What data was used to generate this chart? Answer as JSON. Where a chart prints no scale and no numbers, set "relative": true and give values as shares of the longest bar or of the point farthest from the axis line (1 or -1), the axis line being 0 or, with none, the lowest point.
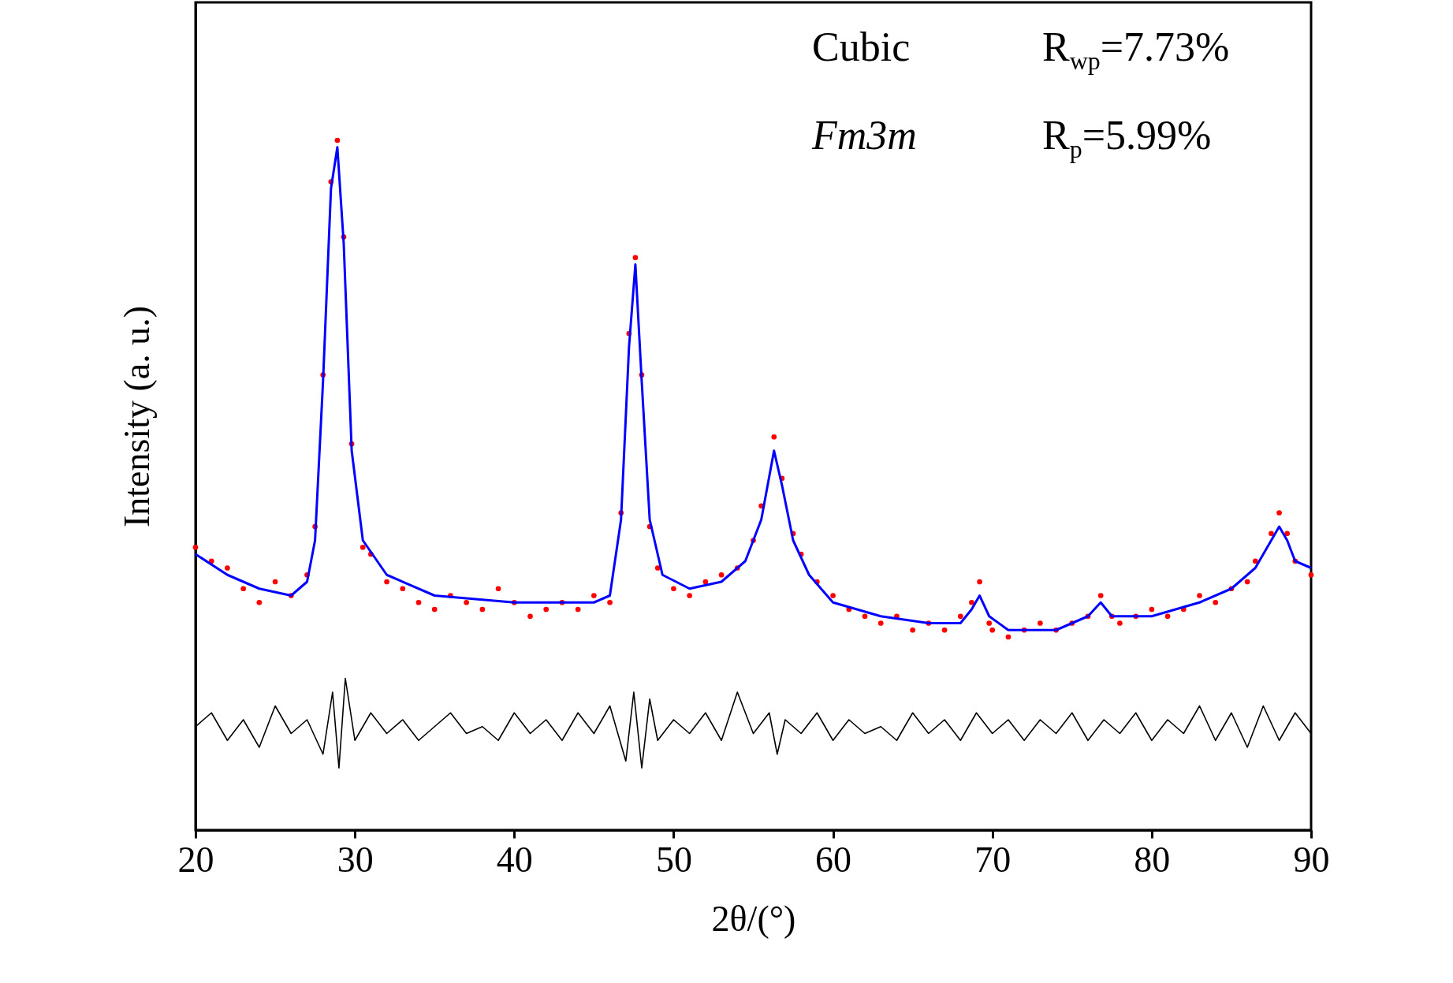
{
  "chart_data": {
    "type": "line",
    "relative": true,
    "xlabel": "2θ/(°)",
    "ylabel": "Intensity (a. u.)",
    "xlim": [
      20,
      90
    ],
    "xticks": [
      20,
      30,
      40,
      50,
      60,
      70,
      80,
      90
    ],
    "annotations": [
      "Cubic",
      "R$_{wp}$=7.73%",
      "Fm3m",
      "R$_{p}$=5.99%"
    ],
    "series": [
      {
        "type": "scatter",
        "marker": "circle",
        "color": "#ff0000",
        "x": [
          20,
          21,
          22,
          23,
          24,
          25,
          26,
          27,
          27.5,
          28,
          28.5,
          28.9,
          29.3,
          29.8,
          30.5,
          31,
          32,
          33,
          34,
          35,
          36,
          37,
          38,
          39,
          40,
          41,
          42,
          43,
          44,
          45,
          46,
          46.7,
          47.2,
          47.6,
          48,
          48.5,
          49,
          50,
          51,
          52,
          53,
          54,
          55,
          55.5,
          56.3,
          56.8,
          57.5,
          58,
          59,
          60,
          61,
          62,
          63,
          64,
          65,
          66,
          67,
          68,
          68.7,
          69.2,
          69.8,
          70,
          71,
          72,
          73,
          74,
          75,
          76,
          76.8,
          77.5,
          78,
          79,
          80,
          81,
          82,
          83,
          84,
          85,
          86,
          86.5,
          87.5,
          88,
          88.5,
          89,
          90
        ],
        "values": [
          0.41,
          0.39,
          0.38,
          0.35,
          0.33,
          0.36,
          0.34,
          0.37,
          0.44,
          0.66,
          0.94,
          1,
          0.86,
          0.56,
          0.41,
          0.4,
          0.36,
          0.35,
          0.33,
          0.32,
          0.34,
          0.33,
          0.32,
          0.35,
          0.33,
          0.31,
          0.32,
          0.33,
          0.32,
          0.34,
          0.33,
          0.46,
          0.72,
          0.83,
          0.66,
          0.44,
          0.38,
          0.35,
          0.34,
          0.36,
          0.37,
          0.38,
          0.42,
          0.47,
          0.57,
          0.51,
          0.43,
          0.4,
          0.36,
          0.34,
          0.32,
          0.31,
          0.3,
          0.31,
          0.29,
          0.3,
          0.29,
          0.31,
          0.33,
          0.36,
          0.3,
          0.29,
          0.28,
          0.29,
          0.3,
          0.29,
          0.3,
          0.31,
          0.34,
          0.31,
          0.3,
          0.31,
          0.32,
          0.31,
          0.32,
          0.34,
          0.33,
          0.35,
          0.36,
          0.39,
          0.43,
          0.46,
          0.43,
          0.39,
          0.37
        ]
      },
      {
        "marker": "none",
        "color": "#0000ff",
        "x": [
          20,
          22,
          24,
          26,
          27,
          27.5,
          28,
          28.5,
          28.9,
          29.3,
          29.8,
          30.5,
          32,
          35,
          40,
          45,
          46,
          46.7,
          47.2,
          47.6,
          48,
          48.5,
          49.3,
          51,
          53,
          54.5,
          55.5,
          56.3,
          56.8,
          57.5,
          58.5,
          60,
          63,
          66,
          68,
          68.7,
          69.2,
          69.8,
          71,
          74,
          76,
          76.8,
          77.5,
          80,
          83,
          85,
          86.5,
          87.5,
          88,
          88.5,
          89,
          90
        ],
        "values": [
          0.4,
          0.37,
          0.35,
          0.34,
          0.36,
          0.42,
          0.65,
          0.93,
          0.99,
          0.85,
          0.55,
          0.42,
          0.37,
          0.34,
          0.33,
          0.33,
          0.34,
          0.45,
          0.7,
          0.82,
          0.65,
          0.45,
          0.37,
          0.35,
          0.36,
          0.39,
          0.45,
          0.55,
          0.5,
          0.42,
          0.37,
          0.33,
          0.31,
          0.3,
          0.3,
          0.32,
          0.34,
          0.31,
          0.29,
          0.29,
          0.31,
          0.33,
          0.31,
          0.31,
          0.33,
          0.35,
          0.38,
          0.42,
          0.44,
          0.42,
          0.39,
          0.38
        ]
      },
      {
        "marker": "none",
        "color": "#000000",
        "x": [
          20,
          21,
          22,
          23,
          24,
          25,
          26,
          27,
          28,
          28.6,
          29,
          29.4,
          30,
          31,
          32,
          33,
          34,
          35,
          36,
          37,
          38,
          39,
          40,
          41,
          42,
          43,
          44,
          45,
          46,
          47,
          47.5,
          48,
          48.5,
          49,
          50,
          51,
          52,
          53,
          54,
          55,
          56,
          56.5,
          57,
          58,
          59,
          60,
          61,
          62,
          63,
          64,
          65,
          66,
          67,
          68,
          69,
          70,
          71,
          72,
          73,
          74,
          75,
          76,
          77,
          78,
          79,
          80,
          81,
          82,
          83,
          84,
          85,
          86,
          87,
          88,
          89,
          90
        ],
        "values": [
          0.15,
          0.17,
          0.13,
          0.16,
          0.12,
          0.18,
          0.14,
          0.16,
          0.11,
          0.2,
          0.09,
          0.22,
          0.13,
          0.17,
          0.14,
          0.16,
          0.13,
          0.15,
          0.17,
          0.14,
          0.15,
          0.13,
          0.17,
          0.14,
          0.16,
          0.13,
          0.17,
          0.14,
          0.18,
          0.1,
          0.2,
          0.09,
          0.19,
          0.13,
          0.16,
          0.14,
          0.17,
          0.13,
          0.2,
          0.14,
          0.17,
          0.11,
          0.16,
          0.14,
          0.17,
          0.13,
          0.16,
          0.14,
          0.15,
          0.13,
          0.17,
          0.14,
          0.16,
          0.13,
          0.17,
          0.14,
          0.16,
          0.13,
          0.16,
          0.14,
          0.17,
          0.13,
          0.16,
          0.14,
          0.17,
          0.13,
          0.16,
          0.14,
          0.18,
          0.13,
          0.17,
          0.12,
          0.18,
          0.13,
          0.17,
          0.14
        ]
      }
    ]
  }
}
